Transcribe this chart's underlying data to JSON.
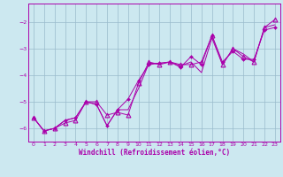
{
  "xlabel": "Windchill (Refroidissement éolien,°C)",
  "xlim": [
    -0.5,
    23.5
  ],
  "ylim": [
    -6.5,
    -1.3
  ],
  "yticks": [
    -6,
    -5,
    -4,
    -3,
    -2
  ],
  "xticks": [
    0,
    1,
    2,
    3,
    4,
    5,
    6,
    7,
    8,
    9,
    10,
    11,
    12,
    13,
    14,
    15,
    16,
    17,
    18,
    19,
    20,
    21,
    22,
    23
  ],
  "bg_color": "#cce8f0",
  "line_color": "#aa00aa",
  "grid_color": "#99bbcc",
  "line1_x": [
    0,
    1,
    2,
    3,
    4,
    5,
    6,
    7,
    8,
    9,
    10,
    11,
    12,
    13,
    14,
    15,
    16,
    17,
    18,
    19,
    20,
    21,
    22,
    23
  ],
  "line1_y": [
    -5.6,
    -6.1,
    -6.0,
    -5.7,
    -5.6,
    -5.0,
    -5.1,
    -5.9,
    -5.3,
    -4.9,
    -4.2,
    -3.6,
    -3.55,
    -3.5,
    -3.7,
    -3.3,
    -3.6,
    -2.5,
    -3.5,
    -3.1,
    -3.4,
    -3.4,
    -2.3,
    -2.2
  ],
  "line2_x": [
    0,
    1,
    2,
    3,
    4,
    5,
    6,
    7,
    8,
    9,
    10,
    11,
    12,
    13,
    14,
    15,
    16,
    17,
    18,
    19,
    20,
    21,
    22,
    23
  ],
  "line2_y": [
    -5.6,
    -6.1,
    -6.0,
    -5.7,
    -5.6,
    -5.0,
    -5.1,
    -5.9,
    -5.3,
    -5.3,
    -4.5,
    -3.55,
    -3.55,
    -3.5,
    -3.65,
    -3.5,
    -3.9,
    -2.6,
    -3.6,
    -3.0,
    -3.2,
    -3.5,
    -2.2,
    -2.1
  ],
  "line3_x": [
    0,
    1,
    2,
    3,
    4,
    5,
    6,
    7,
    8,
    9,
    10,
    11,
    12,
    13,
    14,
    15,
    16,
    17,
    18,
    19,
    20,
    21,
    22,
    23
  ],
  "line3_y": [
    -5.6,
    -6.1,
    -6.0,
    -5.8,
    -5.7,
    -5.0,
    -5.0,
    -5.5,
    -5.4,
    -5.5,
    -4.3,
    -3.5,
    -3.6,
    -3.5,
    -3.6,
    -3.6,
    -3.5,
    -2.5,
    -3.6,
    -3.0,
    -3.3,
    -3.5,
    -2.2,
    -1.9
  ]
}
